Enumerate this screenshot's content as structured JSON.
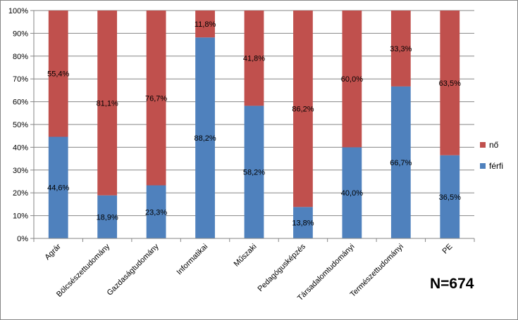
{
  "chart_data": {
    "type": "bar",
    "stacked": true,
    "percent": true,
    "categories": [
      "Agrár",
      "Bölcsészettudomány",
      "Gazdaságtudomány",
      "Informatikai",
      "Műszaki",
      "Pedagógusképzés",
      "Társadalomtudományi",
      "Természettudományi",
      "PE"
    ],
    "series": [
      {
        "name": "férfi",
        "color": "#4F81BD",
        "values": [
          44.6,
          18.9,
          23.3,
          88.2,
          58.2,
          13.8,
          40.0,
          66.7,
          36.5
        ],
        "labels": [
          "44,6%",
          "18,9%",
          "23,3%",
          "88,2%",
          "58,2%",
          "13,8%",
          "40,0%",
          "66,7%",
          "36,5%"
        ]
      },
      {
        "name": "nő",
        "color": "#C0504D",
        "values": [
          55.4,
          81.1,
          76.7,
          11.8,
          41.8,
          86.2,
          60.0,
          33.3,
          63.5
        ],
        "labels": [
          "55,4%",
          "81,1%",
          "76,7%",
          "11,8%",
          "41,8%",
          "86,2%",
          "60,0%",
          "33,3%",
          "63,5%"
        ]
      }
    ],
    "ylim": [
      0,
      100
    ],
    "yticks": [
      "0%",
      "10%",
      "20%",
      "30%",
      "40%",
      "50%",
      "60%",
      "70%",
      "80%",
      "90%",
      "100%"
    ],
    "grid": true,
    "legend": "right",
    "legend_order": [
      "nő",
      "férfi"
    ]
  },
  "note": "N=674"
}
